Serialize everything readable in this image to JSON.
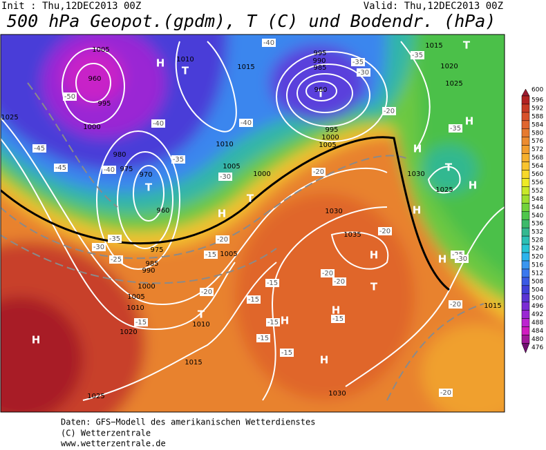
{
  "header": {
    "init": "Init : Thu,12DEC2013 00Z",
    "valid": "Valid: Thu,12DEC2013 00Z",
    "title": "500 hPa Geopot.(gpdm), T (C) und Bodendr. (hPa)"
  },
  "map": {
    "labels": [
      "H",
      "H",
      "T",
      "T",
      "H",
      "T",
      "T",
      "H",
      "H",
      "T",
      "H",
      "T",
      "H",
      "H",
      "H",
      "T",
      "H",
      "H",
      "H",
      "T",
      "1005",
      "1010",
      "960",
      "995",
      "1000",
      "980",
      "975",
      "970",
      "960",
      "975",
      "985",
      "990",
      "1000",
      "1005",
      "1010",
      "1010",
      "1015",
      "1020",
      "1025",
      "1030",
      "1035",
      "1030",
      "1030",
      "1025",
      "1020",
      "1025",
      "1015",
      "1015",
      "1005",
      "1000",
      "995",
      "960",
      "985",
      "990",
      "995",
      "1025",
      "1015",
      "1010",
      "1005",
      "1000",
      "1005",
      "-45",
      "-45",
      "-50",
      "-40",
      "-35",
      "-30",
      "-25",
      "-20",
      "-15",
      "-15",
      "-15",
      "-15",
      "-15",
      "-15",
      "-15",
      "-15",
      "-20",
      "-20",
      "-20",
      "-20",
      "-20",
      "-20",
      "-25",
      "-30",
      "-35",
      "-35",
      "-40",
      "-40",
      "-40",
      "-35",
      "-30",
      "-20",
      "-20",
      "-30",
      "-35"
    ]
  },
  "legend": {
    "levels": [
      600,
      596,
      592,
      588,
      584,
      580,
      576,
      572,
      568,
      564,
      560,
      556,
      552,
      548,
      544,
      540,
      536,
      532,
      528,
      524,
      520,
      516,
      512,
      508,
      504,
      500,
      496,
      492,
      488,
      484,
      480,
      476
    ],
    "colors": [
      "#9b1b30",
      "#b22222",
      "#c83a24",
      "#d8512a",
      "#e0662f",
      "#e67a2f",
      "#ec8c30",
      "#f29e2e",
      "#f6b02e",
      "#f8c42e",
      "#f7d82a",
      "#eeea26",
      "#c8e82a",
      "#9ede30",
      "#72d23a",
      "#4fc64a",
      "#3cba6a",
      "#34b890",
      "#2cc0b4",
      "#28c4d4",
      "#2cb4ec",
      "#3a96f0",
      "#3a78ee",
      "#3a5ae4",
      "#4040d8",
      "#5a34d4",
      "#7a2cd4",
      "#9a28d4",
      "#bc24d0",
      "#d01cc0",
      "#a0189a",
      "#701070"
    ]
  },
  "footer": {
    "lines": [
      "Daten: GFS−Modell des amerikanischen Wetterdienstes",
      "(C) Wetterzentrale",
      "www.wetterzentrale.de"
    ]
  }
}
